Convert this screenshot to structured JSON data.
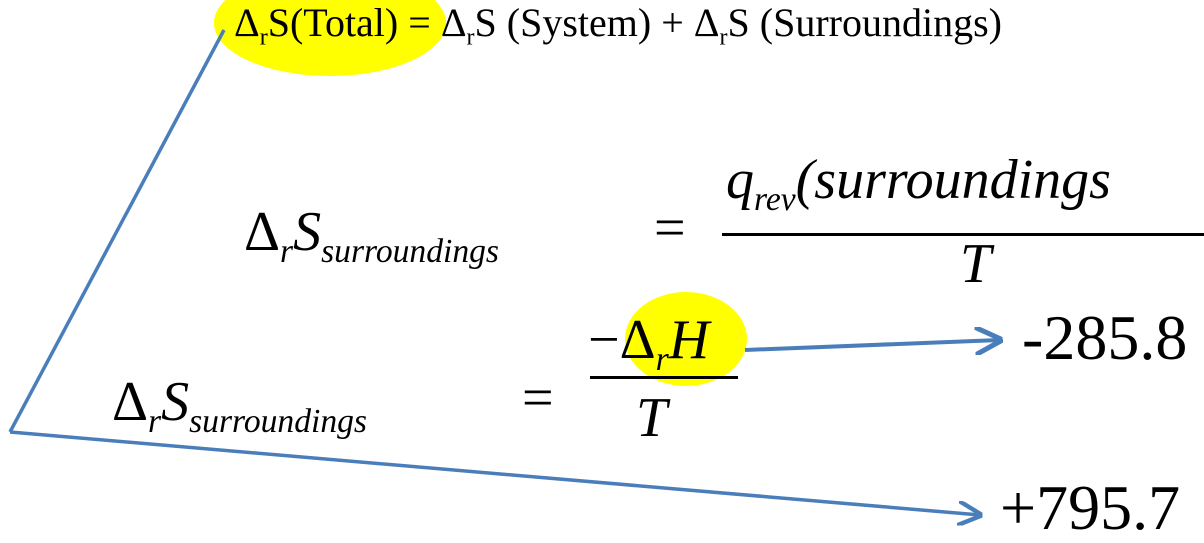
{
  "top_equation": {
    "delta": "Δ",
    "sub_r": "r",
    "lhs_rest": "S(Total)",
    "equals_plus": "= ",
    "term1_rest": "S (System) + ",
    "term2_rest": "S (Surroundings)"
  },
  "eq1": {
    "lhs_delta": "Δ",
    "lhs_sub_r": "r",
    "lhs_S": "S",
    "lhs_sub": "surroundings",
    "equals": "=",
    "num_q": "q",
    "num_q_sub": "rev",
    "num_paren": "(surroundings",
    "den": "T"
  },
  "eq2": {
    "lhs_delta": "Δ",
    "lhs_sub_r": "r",
    "lhs_S": "S",
    "lhs_sub": "surroundings",
    "equals": "=",
    "num_minus": "−",
    "num_delta": "Δ",
    "num_sub_r": "r",
    "num_H": "H",
    "den": "T"
  },
  "value_enthalpy": "-285.8",
  "value_result": "+795.7",
  "colors": {
    "highlight": "#ffff00",
    "arrow": "#4a7ebb"
  }
}
